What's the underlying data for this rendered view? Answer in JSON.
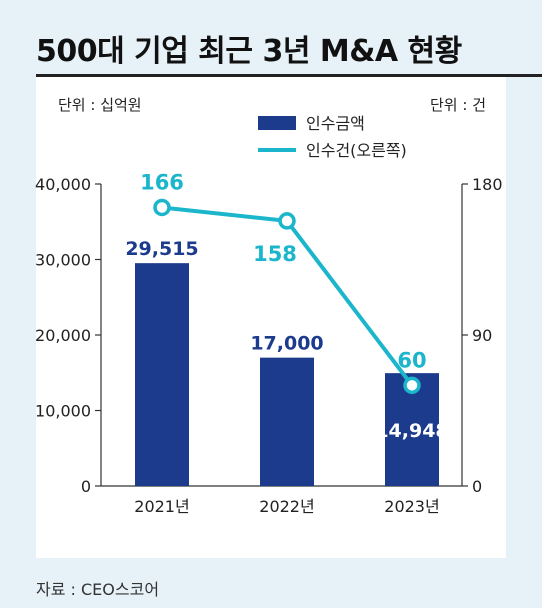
{
  "title": "500대 기업 최근 3년 M&A 현황",
  "source": "자료 : CEO스코어",
  "colors": {
    "bar": "#1d3b8c",
    "line": "#1bb6cc",
    "bar_label": "#1d3b8c",
    "line_label": "#1bb6cc"
  },
  "chart_data": {
    "type": "bar",
    "categories": [
      "2021년",
      "2022년",
      "2023년"
    ],
    "series": [
      {
        "name": "인수금액",
        "type": "bar",
        "axis": "left",
        "values": [
          29515,
          17000,
          14948
        ],
        "labels": [
          "29,515",
          "17,000",
          "14,948"
        ]
      },
      {
        "name": "인수건(오른쪽)",
        "type": "line",
        "axis": "right",
        "values": [
          166,
          158,
          60
        ],
        "labels": [
          "166",
          "158",
          "60"
        ]
      }
    ],
    "y_left": {
      "unit": "단위 : 십억원",
      "ylim": [
        0,
        40000
      ],
      "ticks": [
        "0",
        "10,000",
        "20,000",
        "30,000",
        "40,000"
      ]
    },
    "y_right": {
      "unit": "단위 : 건",
      "ylim": [
        0,
        180
      ],
      "ticks": [
        "0",
        "90",
        "180"
      ]
    },
    "grid": false,
    "legend": "top-center"
  }
}
